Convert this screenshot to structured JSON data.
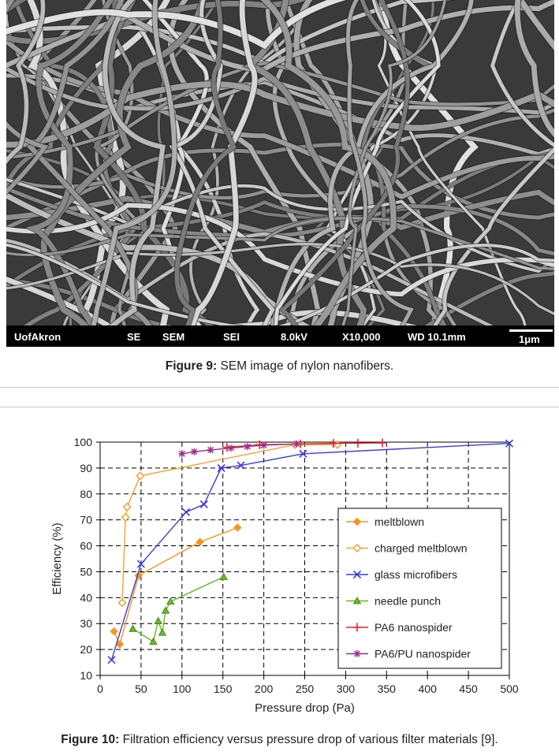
{
  "figure9": {
    "image_alt": "SEM image of nylon nanofibers",
    "info_bar": {
      "lab": "UofAkron",
      "signal": "SE",
      "mode": "SEM",
      "detector": "SEI",
      "voltage": "8.0kV",
      "magnification": "X10,000",
      "working_distance": "WD 10.1mm",
      "scale": "1μm"
    },
    "caption_label": "Figure 9:",
    "caption_text": " SEM image of nylon nanofibers."
  },
  "figure10": {
    "caption_label": "Figure 10:",
    "caption_text": " Filtration efficiency versus pressure drop of various filter materials [9]."
  },
  "chart_data": {
    "type": "line",
    "xlabel": "Pressure drop (Pa)",
    "ylabel": "Efficiency (%)",
    "xlim": [
      0,
      500
    ],
    "ylim": [
      10,
      100
    ],
    "xticks": [
      0,
      50,
      100,
      150,
      200,
      250,
      300,
      350,
      400,
      450,
      500
    ],
    "yticks": [
      10,
      20,
      30,
      40,
      50,
      60,
      70,
      80,
      90,
      100
    ],
    "grid": "dashed",
    "legend_position": "right",
    "series": [
      {
        "name": "meltblown",
        "color": "#f7941d",
        "marker": "diamond-filled",
        "x": [
          17,
          24,
          47,
          122,
          168
        ],
        "y": [
          27,
          22,
          48.5,
          61.5,
          67
        ]
      },
      {
        "name": "charged meltblown",
        "color": "#f7a030",
        "marker": "diamond-open",
        "x": [
          27,
          31,
          33,
          49,
          238,
          290
        ],
        "y": [
          38,
          71,
          75,
          87,
          99,
          99
        ]
      },
      {
        "name": "glass microfibers",
        "color": "#3b3be0",
        "marker": "x",
        "x": [
          14,
          50,
          105,
          127,
          148,
          172,
          248,
          500
        ],
        "y": [
          16,
          53,
          73,
          76,
          90,
          91,
          95.5,
          99.5
        ]
      },
      {
        "name": "needle punch",
        "color": "#66bb22",
        "marker": "triangle",
        "x": [
          40,
          65,
          71,
          76,
          80,
          86,
          151
        ],
        "y": [
          28,
          23,
          31,
          26.5,
          35,
          38.5,
          48
        ]
      },
      {
        "name": "PA6 nanospider",
        "color": "#e8262a",
        "marker": "plus",
        "x": [
          155,
          195,
          245,
          285,
          315,
          345
        ],
        "y": [
          98,
          99,
          99.3,
          99.5,
          99.6,
          99.7
        ]
      },
      {
        "name": "PA6/PU nanospider",
        "color": "#9b2c8c",
        "marker": "star",
        "x": [
          100,
          115,
          135,
          160,
          180,
          200,
          240
        ],
        "y": [
          95.5,
          96.3,
          97,
          97.7,
          98.3,
          98.8,
          99.3
        ]
      }
    ]
  }
}
